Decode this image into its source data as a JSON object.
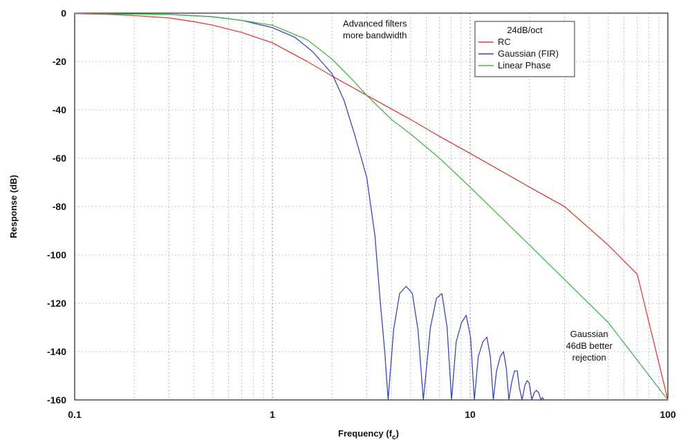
{
  "chart_data": {
    "type": "line",
    "title": "",
    "xlabel": "Frequency (f",
    "xlabel_sub": "c",
    "xlabel_close": ")",
    "ylabel": "Response (dB)",
    "x_scale": "log",
    "xlim": [
      0.1,
      100
    ],
    "ylim": [
      -160,
      0
    ],
    "x_ticks": [
      {
        "value": 0.1,
        "label": "0.1"
      },
      {
        "value": 1,
        "label": "1"
      },
      {
        "value": 10,
        "label": "10"
      },
      {
        "value": 100,
        "label": "100"
      }
    ],
    "y_ticks": [
      {
        "value": 0,
        "label": "0"
      },
      {
        "value": -20,
        "label": "-20"
      },
      {
        "value": -40,
        "label": "-40"
      },
      {
        "value": -60,
        "label": "-60"
      },
      {
        "value": -80,
        "label": "-80"
      },
      {
        "value": -100,
        "label": "-100"
      },
      {
        "value": -120,
        "label": "-120"
      },
      {
        "value": -140,
        "label": "-140"
      },
      {
        "value": -160,
        "label": "-160"
      }
    ],
    "grid": true,
    "legend": {
      "title": "24dB/oct",
      "placement": "top-right"
    },
    "series": [
      {
        "name": "RC",
        "color": "#d6403a",
        "x": [
          0.1,
          0.15,
          0.2,
          0.3,
          0.4,
          0.5,
          0.7,
          1,
          1.5,
          2,
          3,
          5,
          7,
          10,
          20,
          30,
          50,
          70,
          100
        ],
        "y": [
          -0.2,
          -0.5,
          -1,
          -2,
          -3.5,
          -5,
          -8,
          -12.3,
          -20,
          -26,
          -34,
          -44,
          -51,
          -58,
          -72,
          -80,
          -96,
          -108,
          -160
        ]
      },
      {
        "name": "Gaussian (FIR)",
        "color": "#3b46b8",
        "x": [
          0.1,
          0.3,
          0.5,
          0.7,
          1,
          1.3,
          1.6,
          2,
          2.3,
          2.6,
          3,
          3.3,
          3.5,
          3.7,
          3.85,
          4.1,
          4.4,
          4.75,
          5.1,
          5.45,
          5.8,
          6.3,
          6.75,
          7.2,
          7.65,
          8.05,
          8.5,
          9.05,
          9.55,
          10.05,
          10.5,
          11,
          11.6,
          12.15,
          12.65,
          13.1,
          13.6,
          14.2,
          14.75,
          15.25,
          15.7,
          16.2,
          16.75,
          17.3,
          17.75,
          18.3,
          18.9,
          19.45,
          19.9,
          20.5,
          21.1,
          21.6,
          22.2,
          22.8,
          23.2,
          23.7
        ],
        "y": [
          -0.1,
          -0.5,
          -1.5,
          -3,
          -6,
          -10,
          -16,
          -25,
          -36,
          -50,
          -68,
          -92,
          -118,
          -140,
          -160,
          -131,
          -116,
          -113,
          -116,
          -131,
          -160,
          -130,
          -118,
          -116,
          -130,
          -160,
          -136,
          -128,
          -125,
          -134,
          -160,
          -142,
          -136,
          -134,
          -142,
          -160,
          -148,
          -142,
          -140,
          -147,
          -160,
          -153,
          -148,
          -148,
          -155,
          -160,
          -154,
          -152,
          -153,
          -160,
          -157,
          -156,
          -157,
          -160,
          -159,
          -160
        ]
      },
      {
        "name": "Linear Phase",
        "color": "#4caf50",
        "x": [
          0.1,
          0.3,
          0.5,
          0.7,
          1,
          1.5,
          2,
          2.5,
          3,
          4,
          5,
          7,
          10,
          20,
          50,
          100
        ],
        "y": [
          -0.1,
          -0.5,
          -1.5,
          -3,
          -5,
          -11,
          -19,
          -27,
          -34,
          -44,
          -50,
          -60,
          -72,
          -96,
          -128,
          -160
        ]
      }
    ],
    "annotations": [
      {
        "id": "adv",
        "lines": [
          "Advanced filters",
          "more bandwidth"
        ],
        "x": 3.3,
        "y_data": -5.5
      },
      {
        "id": "gauss",
        "lines": [
          "Gaussian",
          "46dB better",
          "rejection"
        ],
        "x": 40,
        "y_data": -134
      }
    ]
  }
}
